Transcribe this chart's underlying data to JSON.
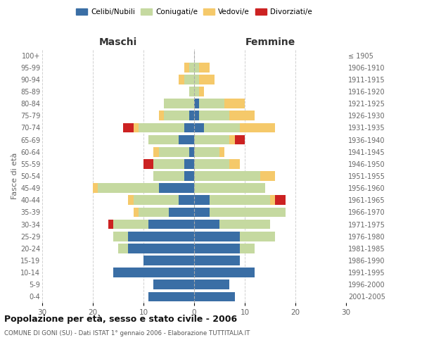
{
  "age_groups": [
    "0-4",
    "5-9",
    "10-14",
    "15-19",
    "20-24",
    "25-29",
    "30-34",
    "35-39",
    "40-44",
    "45-49",
    "50-54",
    "55-59",
    "60-64",
    "65-69",
    "70-74",
    "75-79",
    "80-84",
    "85-89",
    "90-94",
    "95-99",
    "100+"
  ],
  "birth_years": [
    "2001-2005",
    "1996-2000",
    "1991-1995",
    "1986-1990",
    "1981-1985",
    "1976-1980",
    "1971-1975",
    "1966-1970",
    "1961-1965",
    "1956-1960",
    "1951-1955",
    "1946-1950",
    "1941-1945",
    "1936-1940",
    "1931-1935",
    "1926-1930",
    "1921-1925",
    "1916-1920",
    "1911-1915",
    "1906-1910",
    "≤ 1905"
  ],
  "maschi": {
    "celibi": [
      9,
      8,
      16,
      10,
      13,
      13,
      9,
      5,
      3,
      7,
      2,
      2,
      1,
      3,
      2,
      1,
      0,
      0,
      0,
      0,
      0
    ],
    "coniugati": [
      0,
      0,
      0,
      0,
      2,
      3,
      7,
      6,
      9,
      12,
      6,
      6,
      6,
      6,
      9,
      5,
      6,
      1,
      2,
      1,
      0
    ],
    "vedovi": [
      0,
      0,
      0,
      0,
      0,
      0,
      0,
      1,
      1,
      1,
      0,
      0,
      1,
      0,
      1,
      1,
      0,
      0,
      1,
      1,
      0
    ],
    "divorziati": [
      0,
      0,
      0,
      0,
      0,
      0,
      1,
      0,
      0,
      0,
      0,
      2,
      0,
      0,
      2,
      0,
      0,
      0,
      0,
      0,
      0
    ]
  },
  "femmine": {
    "nubili": [
      8,
      7,
      12,
      9,
      9,
      9,
      5,
      3,
      3,
      0,
      0,
      0,
      0,
      0,
      2,
      1,
      1,
      0,
      0,
      0,
      0
    ],
    "coniugate": [
      0,
      0,
      0,
      0,
      3,
      7,
      10,
      15,
      12,
      14,
      13,
      7,
      5,
      7,
      7,
      6,
      5,
      1,
      1,
      1,
      0
    ],
    "vedove": [
      0,
      0,
      0,
      0,
      0,
      0,
      0,
      0,
      1,
      0,
      3,
      2,
      1,
      1,
      7,
      5,
      4,
      1,
      3,
      2,
      0
    ],
    "divorziate": [
      0,
      0,
      0,
      0,
      0,
      0,
      0,
      0,
      2,
      0,
      0,
      0,
      0,
      2,
      0,
      0,
      0,
      0,
      0,
      0,
      0
    ]
  },
  "colors": {
    "celibi_nubili": "#3a6ea5",
    "coniugati": "#c5d9a0",
    "vedovi": "#f5c96a",
    "divorziati": "#cc2222"
  },
  "title": "Popolazione per età, sesso e stato civile - 2006",
  "subtitle": "COMUNE DI GONI (SU) - Dati ISTAT 1° gennaio 2006 - Elaborazione TUTTITALIA.IT",
  "xlabel_left": "Maschi",
  "xlabel_right": "Femmine",
  "ylabel_left": "Fasce di età",
  "xlim": 30,
  "background_color": "#ffffff",
  "grid_color": "#cccccc"
}
